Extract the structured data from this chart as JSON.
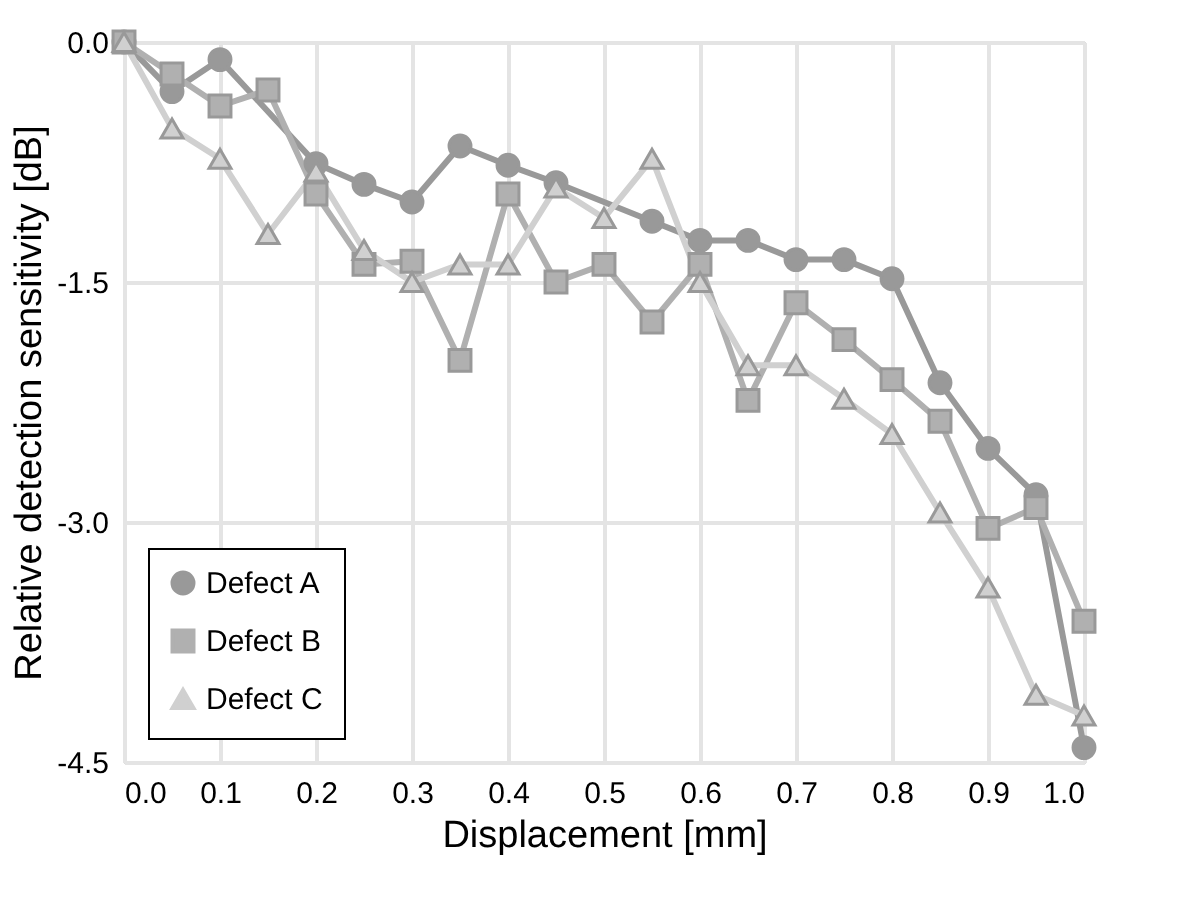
{
  "chart_data": {
    "type": "line",
    "xlabel": "Displacement [mm]",
    "ylabel": "Relative detection sensitivity [dB]",
    "x": [
      0.0,
      0.05,
      0.1,
      0.15,
      0.2,
      0.25,
      0.3,
      0.35,
      0.4,
      0.45,
      0.5,
      0.55,
      0.6,
      0.65,
      0.7,
      0.75,
      0.8,
      0.85,
      0.9,
      0.95,
      1.0
    ],
    "series": [
      {
        "name": "Defect A",
        "color": "#999999",
        "marker": "circle",
        "values": [
          0,
          -0.31,
          -0.11,
          null,
          -0.76,
          -0.89,
          -1.0,
          -0.65,
          -0.77,
          -0.88,
          null,
          -1.12,
          -1.24,
          -1.24,
          -1.36,
          -1.36,
          -1.48,
          -2.13,
          -2.54,
          -2.83,
          -4.41
        ]
      },
      {
        "name": "Defect B",
        "color": "#b0b0b0",
        "marker": "square",
        "values": [
          0,
          -0.2,
          -0.4,
          -0.3,
          -0.95,
          -1.39,
          -1.37,
          -1.99,
          -0.95,
          -1.5,
          -1.39,
          -1.75,
          -1.39,
          -2.24,
          -1.63,
          -1.86,
          -2.11,
          -2.37,
          -3.04,
          -2.91,
          -3.62
        ]
      },
      {
        "name": "Defect C",
        "color": "#d0d0d0",
        "marker": "triangle",
        "values": [
          0,
          -0.54,
          -0.73,
          -1.2,
          -0.81,
          -1.3,
          -1.5,
          -1.39,
          -1.39,
          -0.91,
          -1.1,
          -0.73,
          -1.5,
          -2.02,
          -2.02,
          -2.23,
          -2.45,
          -2.94,
          -3.41,
          -4.08,
          -4.21
        ]
      }
    ],
    "xlim": [
      0,
      1
    ],
    "xticks": [
      {
        "value": 0,
        "label": "0.0"
      },
      0.1,
      0.2,
      0.3,
      0.4,
      0.5,
      0.6,
      0.7,
      0.8,
      0.9,
      {
        "value": 1,
        "label": "1.0"
      }
    ],
    "ylim": [
      -4.5,
      0
    ],
    "yticks": [
      {
        "value": -4.5,
        "label": "-4.5"
      },
      {
        "value": -3,
        "label": "-3.0"
      },
      -1.5,
      {
        "value": 0,
        "label": "0.0"
      }
    ],
    "grid": true,
    "legend": "bottom left",
    "line_style": "solid"
  }
}
